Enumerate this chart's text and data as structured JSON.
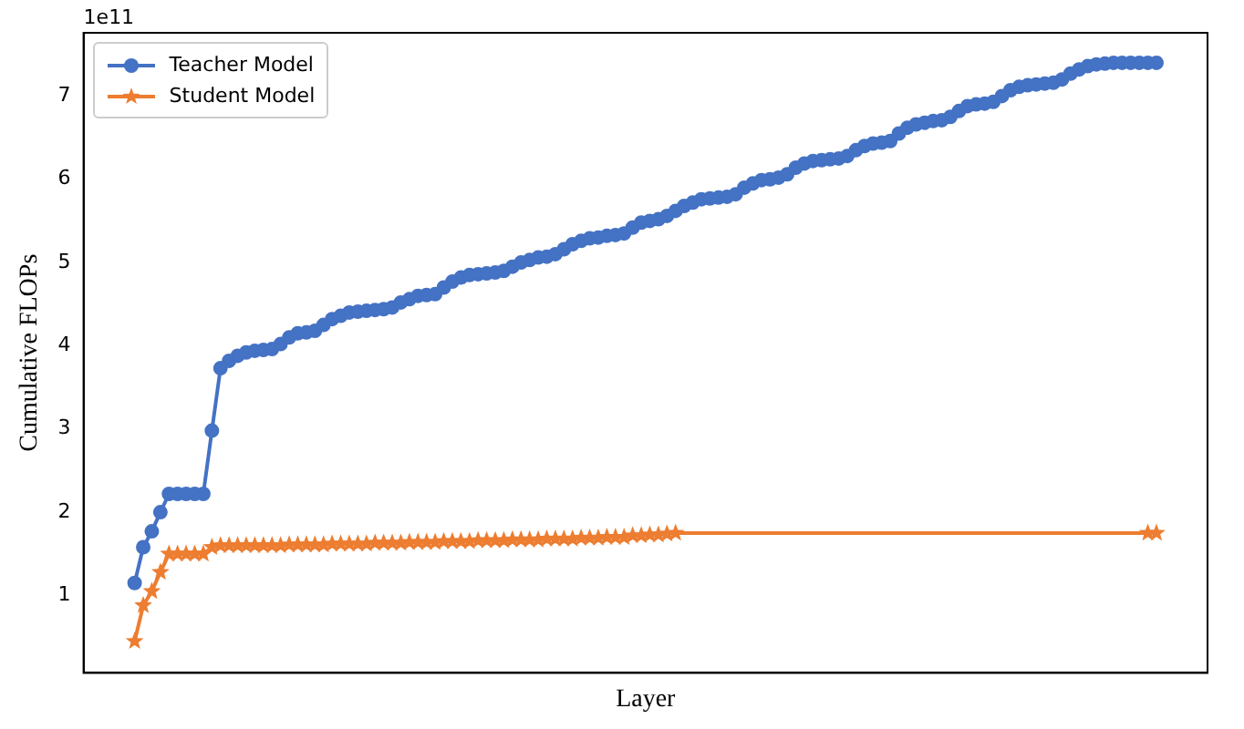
{
  "chart_data": {
    "type": "line",
    "xlabel": "Layer",
    "ylabel": "Cumulative FLOPs",
    "annotations": [
      "1e11"
    ],
    "categories": [
      null,
      null,
      null,
      null,
      null,
      null,
      null,
      null,
      null,
      null,
      null,
      null,
      null,
      null,
      null,
      null,
      null,
      null,
      null,
      null,
      null,
      null,
      null,
      null,
      null,
      null,
      null,
      null,
      null,
      null,
      null,
      null,
      null,
      null,
      null,
      null,
      null,
      null,
      null,
      null,
      null,
      null,
      null,
      null,
      null,
      null,
      null,
      null,
      null,
      null,
      null,
      null,
      null,
      null,
      null,
      null,
      null,
      null,
      null,
      null,
      null,
      null,
      null,
      null,
      null,
      null,
      null,
      null,
      null,
      null,
      null,
      null,
      null,
      null,
      null,
      null,
      null,
      null,
      null,
      null,
      null,
      null,
      null,
      null,
      null,
      null,
      null,
      null,
      null,
      null,
      null,
      null,
      null,
      null,
      null,
      null,
      null,
      null,
      null,
      null,
      null,
      null,
      null,
      null,
      null,
      null,
      null,
      null,
      null,
      null,
      null,
      null,
      null,
      null,
      null,
      null,
      null,
      null,
      null,
      null
    ],
    "series": [
      {
        "name": "Teacher Model",
        "color": "#4472c4",
        "marker": "circle",
        "values": [
          1.15,
          1.58,
          1.77,
          2.0,
          2.22,
          2.22,
          2.22,
          2.22,
          2.22,
          2.98,
          3.73,
          3.82,
          3.88,
          3.92,
          3.94,
          3.95,
          3.96,
          4.02,
          4.1,
          4.15,
          4.16,
          4.18,
          4.25,
          4.32,
          4.36,
          4.4,
          4.41,
          4.42,
          4.43,
          4.44,
          4.46,
          4.52,
          4.56,
          4.6,
          4.61,
          4.62,
          4.7,
          4.77,
          4.82,
          4.85,
          4.86,
          4.87,
          4.88,
          4.9,
          4.95,
          5.0,
          5.03,
          5.06,
          5.07,
          5.1,
          5.16,
          5.22,
          5.26,
          5.29,
          5.3,
          5.32,
          5.33,
          5.35,
          5.42,
          5.48,
          5.5,
          5.52,
          5.56,
          5.62,
          5.68,
          5.72,
          5.76,
          5.77,
          5.78,
          5.79,
          5.82,
          5.9,
          5.95,
          5.99,
          6.0,
          6.02,
          6.06,
          6.14,
          6.19,
          6.22,
          6.23,
          6.24,
          6.25,
          6.28,
          6.35,
          6.4,
          6.43,
          6.44,
          6.46,
          6.55,
          6.62,
          6.66,
          6.68,
          6.7,
          6.71,
          6.75,
          6.82,
          6.88,
          6.9,
          6.91,
          6.93,
          7.0,
          7.07,
          7.11,
          7.13,
          7.14,
          7.15,
          7.16,
          7.2,
          7.27,
          7.32,
          7.36,
          7.38,
          7.39,
          7.4,
          7.4,
          7.4,
          7.4,
          7.4,
          7.4
        ]
      },
      {
        "name": "Student Model",
        "color": "#ed7d31",
        "marker": "star",
        "values": [
          0.45,
          0.88,
          1.05,
          1.28,
          1.5,
          1.5,
          1.5,
          1.5,
          1.5,
          1.58,
          1.6,
          1.6,
          1.6,
          1.6,
          1.6,
          1.6,
          1.6,
          1.6,
          1.61,
          1.61,
          1.61,
          1.61,
          1.61,
          1.62,
          1.62,
          1.62,
          1.62,
          1.62,
          1.63,
          1.63,
          1.63,
          1.63,
          1.64,
          1.64,
          1.64,
          1.64,
          1.65,
          1.65,
          1.65,
          1.65,
          1.66,
          1.66,
          1.66,
          1.66,
          1.67,
          1.67,
          1.67,
          1.67,
          1.68,
          1.68,
          1.68,
          1.68,
          1.69,
          1.69,
          1.69,
          1.7,
          1.7,
          1.7,
          1.72,
          1.72,
          1.73,
          1.73,
          1.74,
          1.75,
          null,
          null,
          null,
          null,
          null,
          null,
          null,
          null,
          null,
          null,
          null,
          null,
          null,
          null,
          null,
          null,
          null,
          null,
          null,
          null,
          null,
          null,
          null,
          null,
          null,
          null,
          null,
          null,
          null,
          null,
          null,
          null,
          null,
          null,
          null,
          null,
          null,
          null,
          null,
          null,
          null,
          null,
          null,
          null,
          null,
          null,
          null,
          null,
          null,
          null,
          null,
          null,
          null,
          null,
          1.75,
          1.75
        ]
      }
    ],
    "ylim": [
      0.07,
      7.76
    ],
    "yticks": [
      1,
      2,
      3,
      4,
      5,
      6,
      7
    ],
    "tick_labels": "y",
    "grid": false,
    "legend": "top left"
  }
}
